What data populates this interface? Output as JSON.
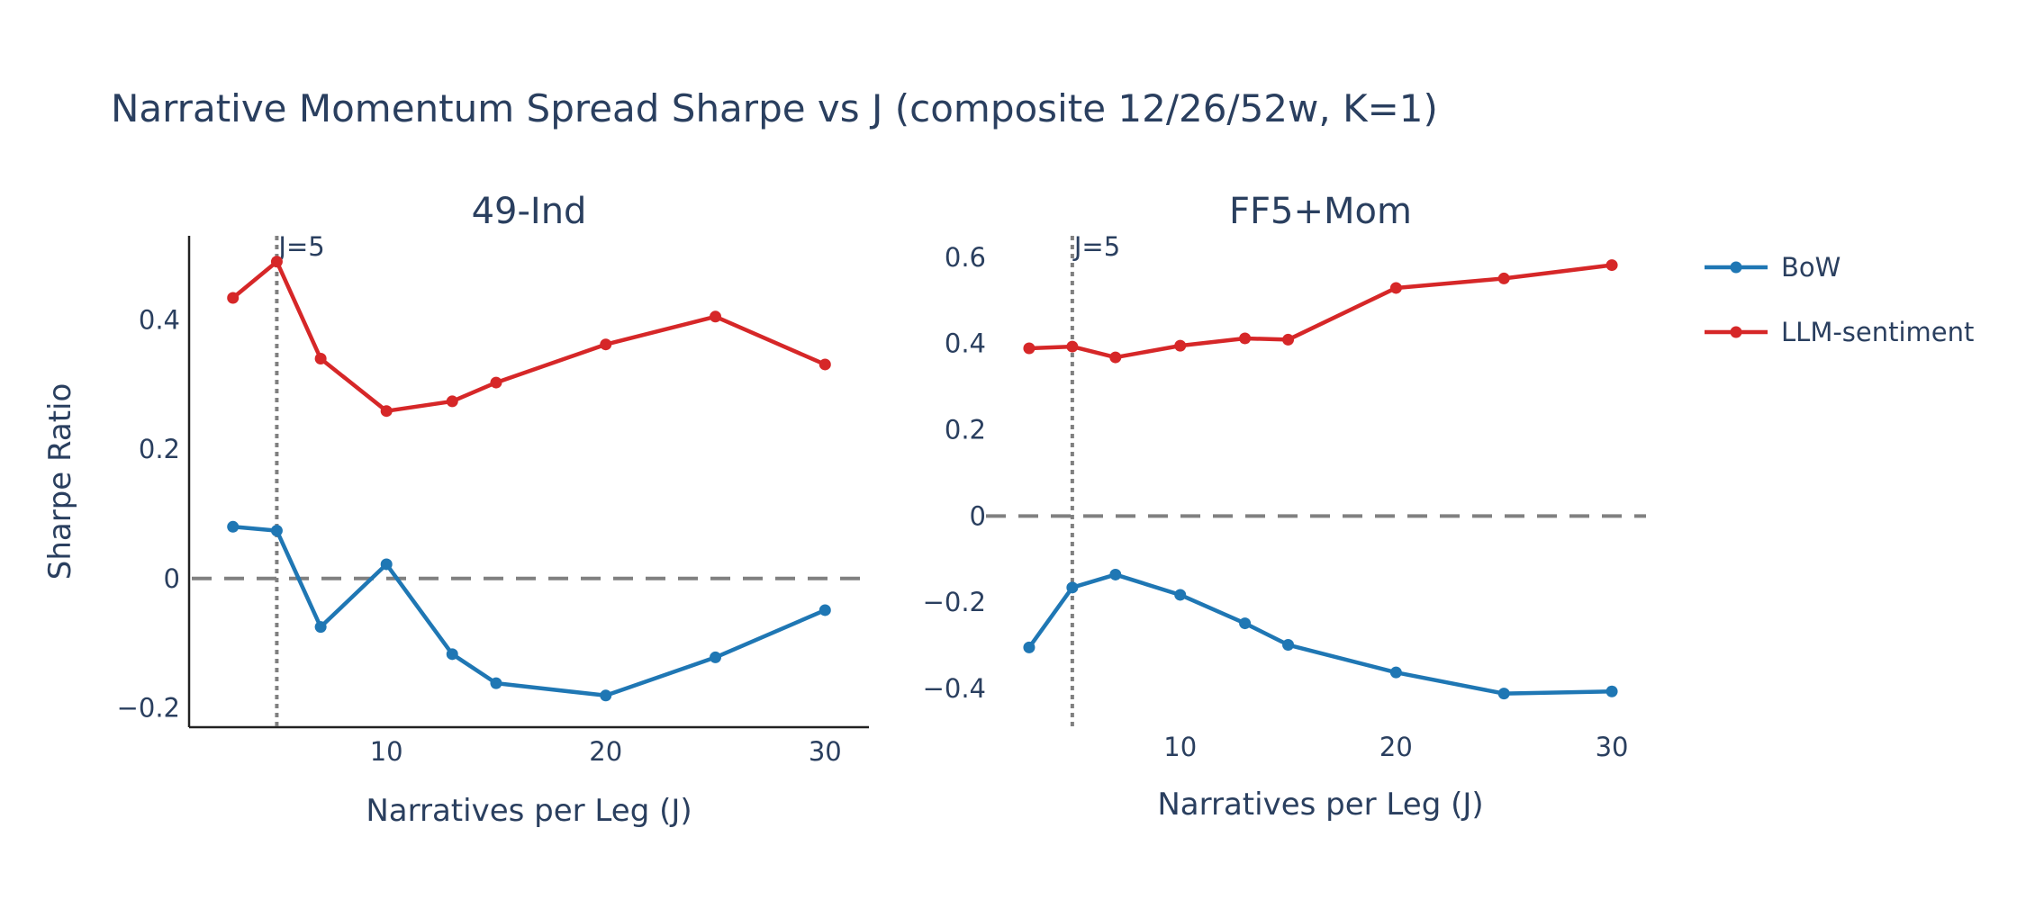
{
  "title": "Narrative Momentum Spread Sharpe vs J (composite 12/26/52w, K=1)",
  "legend": {
    "placement": "top-right",
    "entries": [
      {
        "name": "BoW",
        "color": "#1f77b4"
      },
      {
        "name": "LLM-sentiment",
        "color": "#d62728"
      }
    ]
  },
  "chart_data": [
    {
      "type": "line",
      "title": "49-Ind",
      "xlabel": "Narratives per Leg (J)",
      "ylabel": "Sharpe Ratio",
      "xlim": [
        1,
        32
      ],
      "ylim": [
        -0.23,
        0.53
      ],
      "xticks": [
        10,
        20,
        30
      ],
      "yticks": [
        -0.2,
        0,
        0.2,
        0.4
      ],
      "ytick_labels": [
        "−0.2",
        "0",
        "0.2",
        "0.4"
      ],
      "x": [
        3,
        5,
        7,
        10,
        13,
        15,
        20,
        25,
        30
      ],
      "series": [
        {
          "name": "BoW",
          "color": "#1f77b4",
          "values": [
            0.08,
            0.074,
            -0.075,
            0.022,
            -0.117,
            -0.162,
            -0.181,
            -0.122,
            -0.049
          ]
        },
        {
          "name": "LLM-sentiment",
          "color": "#d62728",
          "values": [
            0.434,
            0.49,
            0.34,
            0.259,
            0.274,
            0.303,
            0.362,
            0.405,
            0.331
          ]
        }
      ],
      "hline": {
        "y": 0,
        "style": "dashed"
      },
      "vline": {
        "x": 5,
        "style": "dotted",
        "label": "J=5"
      },
      "show_axis_lines": true
    },
    {
      "type": "line",
      "title": "FF5+Mom",
      "xlabel": "Narratives per Leg (J)",
      "ylabel": "",
      "xlim": [
        1,
        32
      ],
      "ylim": [
        -0.49,
        0.65
      ],
      "xticks": [
        10,
        20,
        30
      ],
      "yticks": [
        -0.4,
        -0.2,
        0,
        0.2,
        0.4,
        0.6
      ],
      "ytick_labels": [
        "−0.4",
        "−0.2",
        "0",
        "0.2",
        "0.4",
        "0.6"
      ],
      "x": [
        3,
        5,
        7,
        10,
        13,
        15,
        20,
        25,
        30
      ],
      "series": [
        {
          "name": "BoW",
          "color": "#1f77b4",
          "values": [
            -0.305,
            -0.166,
            -0.136,
            -0.183,
            -0.249,
            -0.299,
            -0.363,
            -0.412,
            -0.407
          ]
        },
        {
          "name": "LLM-sentiment",
          "color": "#d62728",
          "values": [
            0.389,
            0.393,
            0.368,
            0.395,
            0.412,
            0.409,
            0.529,
            0.551,
            0.582
          ]
        }
      ],
      "hline": {
        "y": 0,
        "style": "dashed"
      },
      "vline": {
        "x": 5,
        "style": "dotted",
        "label": "J=5"
      },
      "show_axis_lines": false
    }
  ]
}
